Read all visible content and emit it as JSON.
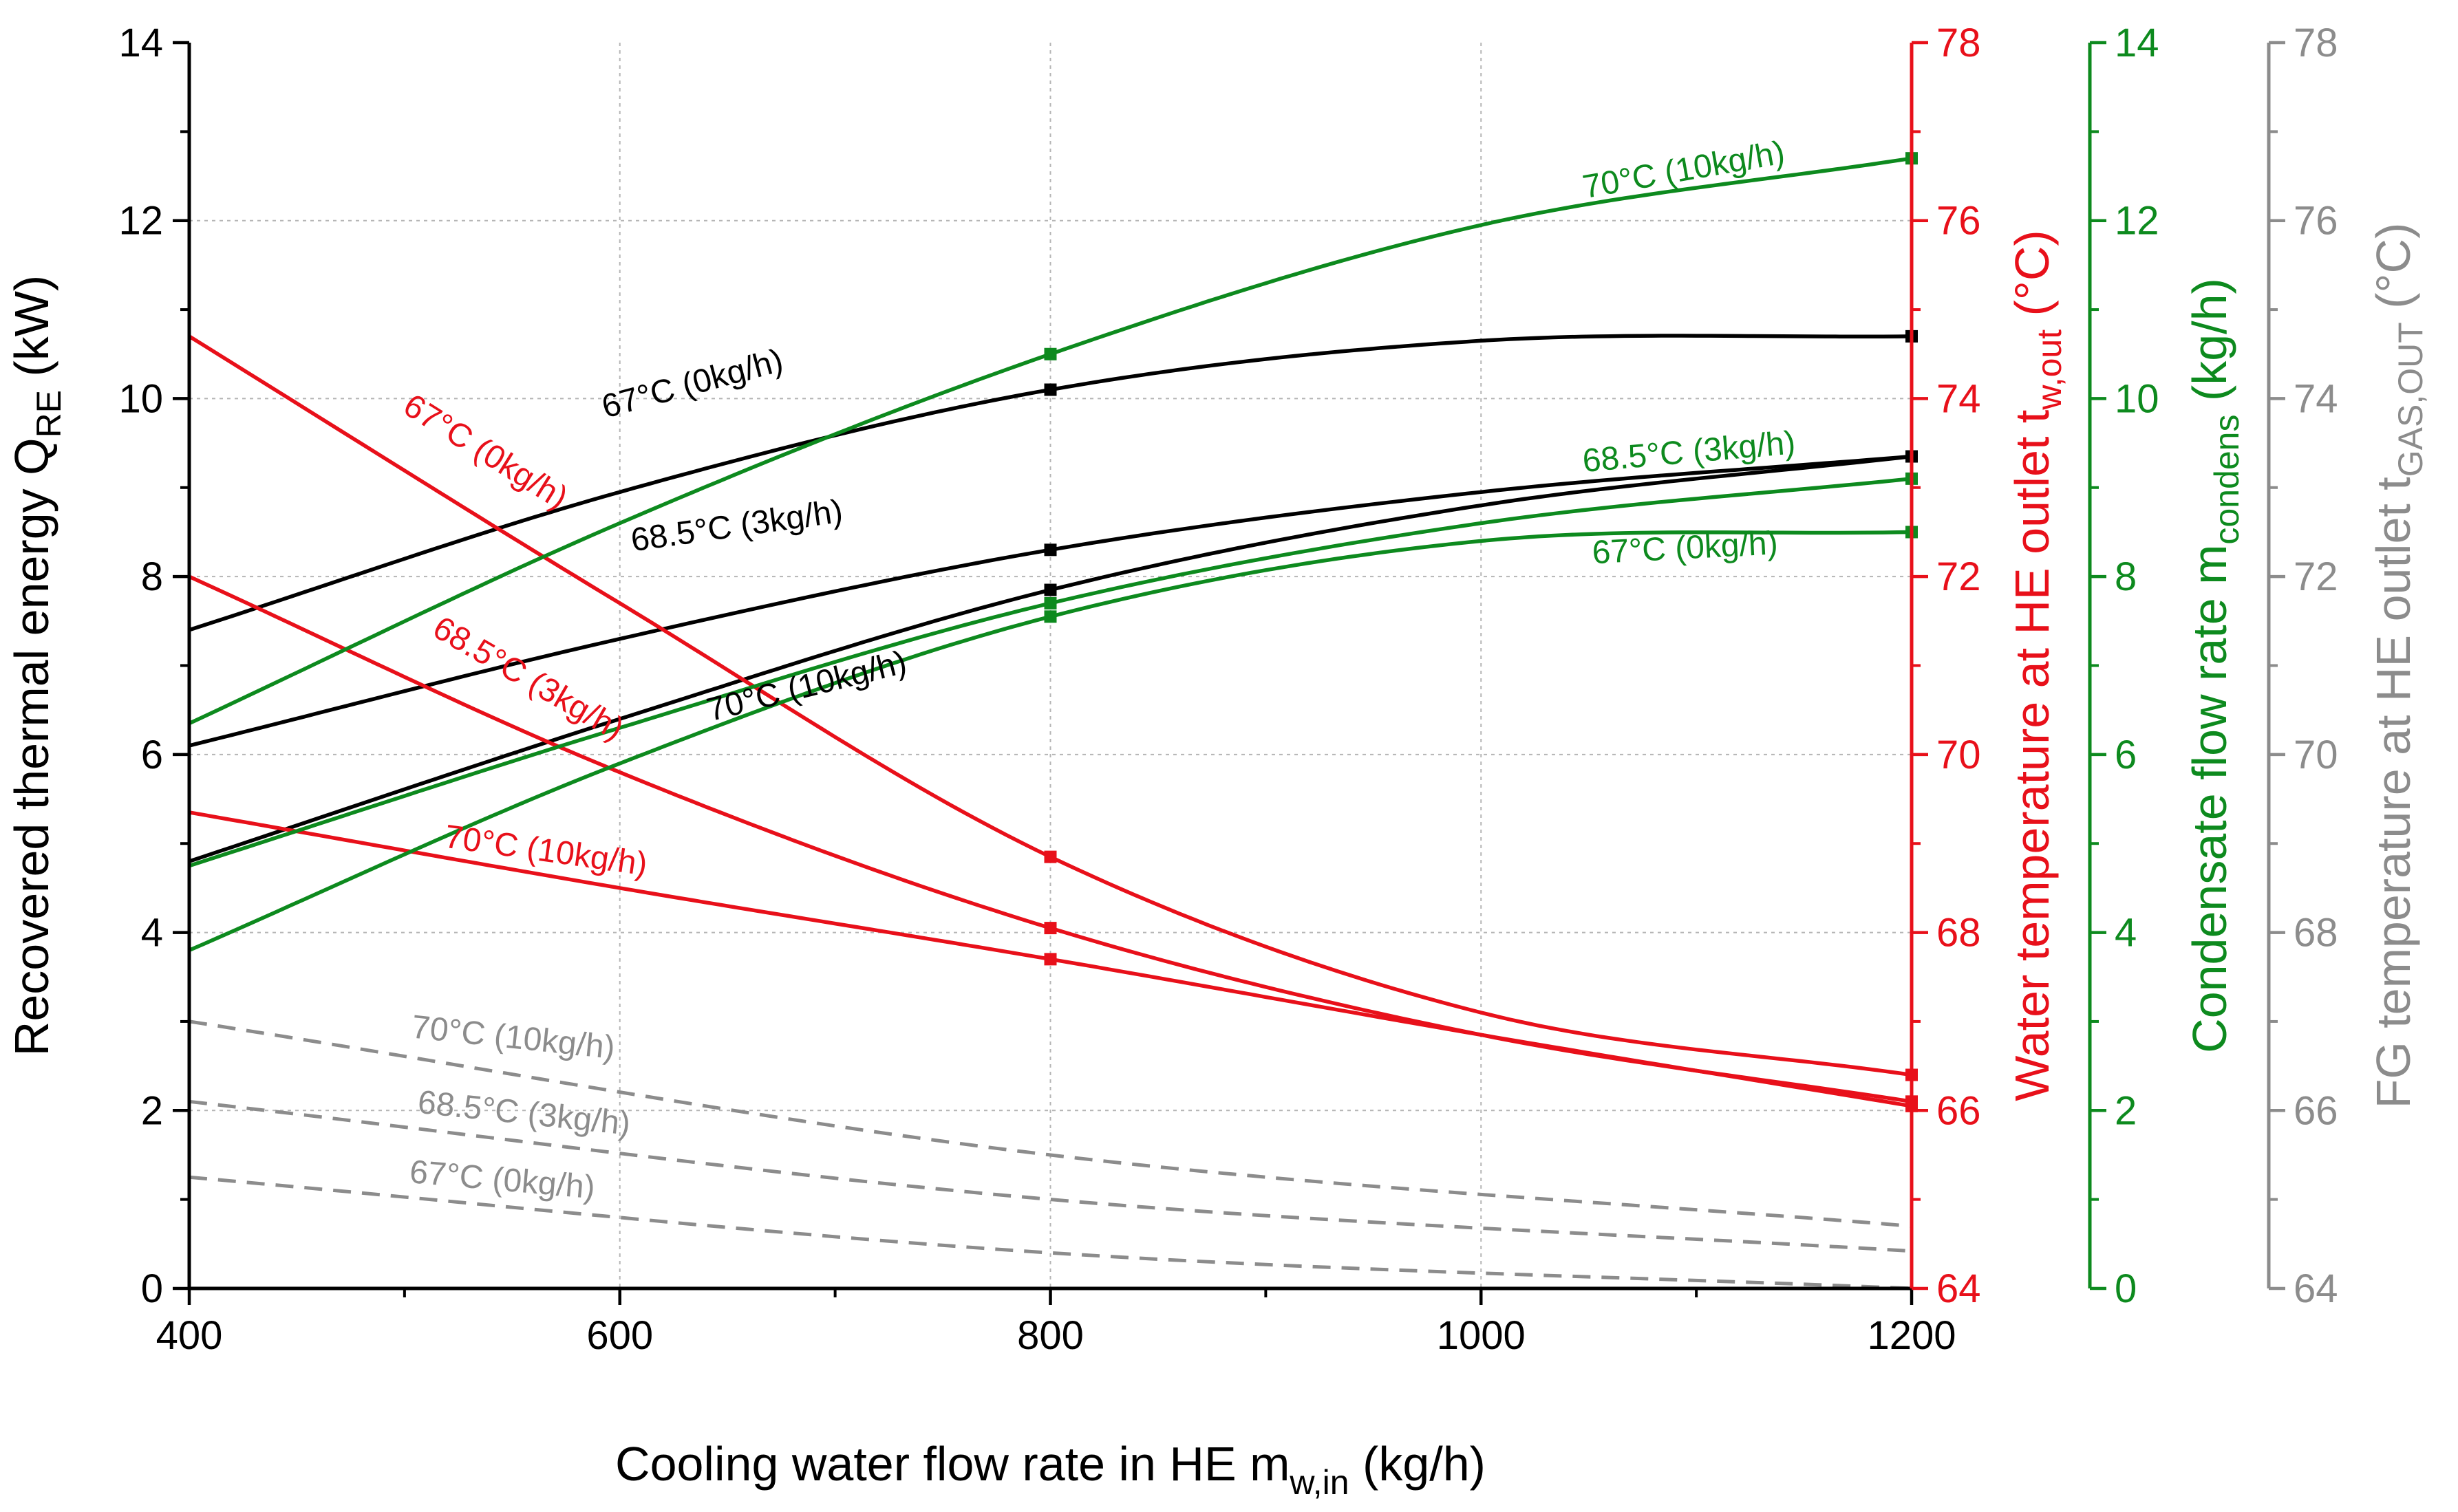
{
  "chart_data": {
    "type": "line",
    "xlabel": {
      "main": "Cooling water flow rate in HE m",
      "sub": "w,in",
      "unit": " (kg/h)"
    },
    "xlim": [
      400,
      1200
    ],
    "xticks": [
      {
        "v": 400,
        "label": "400"
      },
      {
        "v": 600,
        "label": "600"
      },
      {
        "v": 800,
        "label": "800"
      },
      {
        "v": 1000,
        "label": "1000"
      },
      {
        "v": 1200,
        "label": "1200"
      }
    ],
    "grid": true,
    "axes": [
      {
        "id": "qre",
        "side": "left",
        "color": "#000000",
        "range": [
          0,
          14
        ],
        "label": {
          "main": "Recovered thermal energy Q",
          "sub": "RE",
          "unit": " (kW)"
        },
        "ticks": [
          {
            "v": 0,
            "label": "0"
          },
          {
            "v": 2,
            "label": "2"
          },
          {
            "v": 4,
            "label": "4"
          },
          {
            "v": 6,
            "label": "6"
          },
          {
            "v": 8,
            "label": "8"
          },
          {
            "v": 10,
            "label": "10"
          },
          {
            "v": 12,
            "label": "12"
          },
          {
            "v": 14,
            "label": "14"
          }
        ]
      },
      {
        "id": "tw",
        "side": "right",
        "color": "#e8101a",
        "range": [
          64,
          78
        ],
        "label": {
          "main": "Water temperature at HE outlet t",
          "sub": "w,out",
          "unit": " (°C)"
        },
        "ticks": [
          {
            "v": 64,
            "label": "64"
          },
          {
            "v": 66,
            "label": "66"
          },
          {
            "v": 68,
            "label": "68"
          },
          {
            "v": 70,
            "label": "70"
          },
          {
            "v": 72,
            "label": "72"
          },
          {
            "v": 74,
            "label": "74"
          },
          {
            "v": 76,
            "label": "76"
          },
          {
            "v": 78,
            "label": "78"
          }
        ]
      },
      {
        "id": "mc",
        "side": "right",
        "color": "#0d8a1e",
        "range": [
          0,
          14
        ],
        "label": {
          "main": "Condensate flow rate m",
          "sub": "condens",
          "unit": " (kg/h)"
        },
        "ticks": [
          {
            "v": 0,
            "label": "0"
          },
          {
            "v": 2,
            "label": "2"
          },
          {
            "v": 4,
            "label": "4"
          },
          {
            "v": 6,
            "label": "6"
          },
          {
            "v": 8,
            "label": "8"
          },
          {
            "v": 10,
            "label": "10"
          },
          {
            "v": 12,
            "label": "12"
          },
          {
            "v": 14,
            "label": "14"
          }
        ]
      },
      {
        "id": "tg",
        "side": "right",
        "color": "#8c8c8c",
        "range": [
          64,
          78
        ],
        "label": {
          "main": "FG temperature at HE outlet t",
          "sub": "GAS,OUT",
          "unit": " (°C)"
        },
        "ticks": [
          {
            "v": 64,
            "label": "64"
          },
          {
            "v": 66,
            "label": "66"
          },
          {
            "v": 68,
            "label": "68"
          },
          {
            "v": 70,
            "label": "70"
          },
          {
            "v": 72,
            "label": "72"
          },
          {
            "v": 74,
            "label": "74"
          },
          {
            "v": 76,
            "label": "76"
          },
          {
            "v": 78,
            "label": "78"
          }
        ]
      }
    ],
    "series": [
      {
        "name": "Q_RE 67°C (0kg/h)",
        "axis": "qre",
        "color": "#000000",
        "dashed": false,
        "label": "67°C (0kg/h)",
        "x": [
          400,
          600,
          800,
          1000,
          1200
        ],
        "y": [
          7.4,
          8.95,
          10.1,
          10.65,
          10.7
        ],
        "markers": [
          800,
          1200
        ],
        "label_x": 635,
        "label_y": 10.05,
        "label_angle": -15
      },
      {
        "name": "Q_RE 68.5°C (3kg/h)",
        "axis": "qre",
        "color": "#000000",
        "dashed": false,
        "label": "68.5°C (3kg/h)",
        "x": [
          400,
          600,
          800,
          1000,
          1200
        ],
        "y": [
          6.1,
          7.3,
          8.3,
          8.95,
          9.35
        ],
        "markers": [
          800,
          1200
        ],
        "label_x": 655,
        "label_y": 8.45,
        "label_angle": -8
      },
      {
        "name": "Q_RE 70°C (10kg/h)",
        "axis": "qre",
        "color": "#000000",
        "dashed": false,
        "label": "70°C (10kg/h)",
        "x": [
          400,
          600,
          800,
          1000,
          1200
        ],
        "y": [
          4.8,
          6.4,
          7.85,
          8.8,
          9.35
        ],
        "markers": [
          800,
          1200
        ],
        "label_x": 688,
        "label_y": 6.65,
        "label_angle": -14
      },
      {
        "name": "t_w,out 67°C (0kg/h)",
        "axis": "tw",
        "color": "#e8101a",
        "dashed": false,
        "label": "67°C (0kg/h)",
        "x": [
          400,
          600,
          800,
          1000,
          1200
        ],
        "y": [
          74.7,
          71.7,
          68.85,
          67.1,
          66.4
        ],
        "markers": [
          800,
          1200
        ],
        "label_x": 535,
        "label_y": 73.3,
        "label_angle": 32
      },
      {
        "name": "t_w,out 68.5°C (3kg/h)",
        "axis": "tw",
        "color": "#e8101a",
        "dashed": false,
        "label": "68.5°C (3kg/h)",
        "x": [
          400,
          600,
          800,
          1000,
          1200
        ],
        "y": [
          72,
          69.8,
          68.05,
          66.85,
          66.1
        ],
        "markers": [
          800,
          1200
        ],
        "label_x": 555,
        "label_y": 70.75,
        "label_angle": 30
      },
      {
        "name": "t_w,out 70°C (10kg/h)",
        "axis": "tw",
        "color": "#e8101a",
        "dashed": false,
        "label": "70°C (10kg/h)",
        "x": [
          400,
          600,
          800,
          1000,
          1200
        ],
        "y": [
          69.35,
          68.5,
          67.7,
          66.85,
          66.05
        ],
        "markers": [
          800,
          1200
        ],
        "label_x": 565,
        "label_y": 68.8,
        "label_angle": 8
      },
      {
        "name": "m_condens 67°C (0kg/h)",
        "axis": "mc",
        "color": "#0d8a1e",
        "dashed": false,
        "label": "67°C (0kg/h)",
        "x": [
          400,
          600,
          800,
          1000,
          1200
        ],
        "y": [
          3.8,
          5.9,
          7.55,
          8.4,
          8.5
        ],
        "markers": [
          800,
          1200
        ],
        "label_x": 1095,
        "label_y": 8.2,
        "label_angle": -3
      },
      {
        "name": "m_condens 68.5°C (3kg/h)",
        "axis": "mc",
        "color": "#0d8a1e",
        "dashed": false,
        "label": "68.5°C (3kg/h)",
        "x": [
          400,
          600,
          800,
          1000,
          1200
        ],
        "y": [
          4.75,
          6.3,
          7.7,
          8.6,
          9.1
        ],
        "markers": [
          800,
          1200
        ],
        "label_x": 1097,
        "label_y": 9.28,
        "label_angle": -5
      },
      {
        "name": "m_condens 70°C (10kg/h)",
        "axis": "mc",
        "color": "#0d8a1e",
        "dashed": false,
        "label": "70°C (10kg/h)",
        "x": [
          400,
          600,
          800,
          1000,
          1200
        ],
        "y": [
          6.35,
          8.6,
          10.5,
          11.95,
          12.7
        ],
        "markers": [
          800,
          1200
        ],
        "label_x": 1095,
        "label_y": 12.45,
        "label_angle": -10
      },
      {
        "name": "t_GAS,OUT 70°C (10kg/h)",
        "axis": "qre",
        "color": "#8c8c8c",
        "dashed": true,
        "label": "70°C (10kg/h)",
        "x": [
          400,
          800,
          1200
        ],
        "y": [
          3.0,
          1.5,
          0.7
        ],
        "markers": [],
        "label_x": 550,
        "label_y": 2.7,
        "label_angle": 6
      },
      {
        "name": "t_GAS,OUT 68.5°C (3kg/h)",
        "axis": "qre",
        "color": "#8c8c8c",
        "dashed": true,
        "label": "68.5°C (3kg/h)",
        "x": [
          400,
          800,
          1200
        ],
        "y": [
          2.1,
          1.0,
          0.42
        ],
        "markers": [],
        "label_x": 555,
        "label_y": 1.85,
        "label_angle": 6
      },
      {
        "name": "t_GAS,OUT 67°C (0kg/h)",
        "axis": "qre",
        "color": "#8c8c8c",
        "dashed": true,
        "label": "67°C (0kg/h)",
        "x": [
          400,
          800,
          1200
        ],
        "y": [
          1.25,
          0.4,
          0.0
        ],
        "markers": [],
        "label_x": 545,
        "label_y": 1.1,
        "label_angle": 5
      }
    ]
  }
}
